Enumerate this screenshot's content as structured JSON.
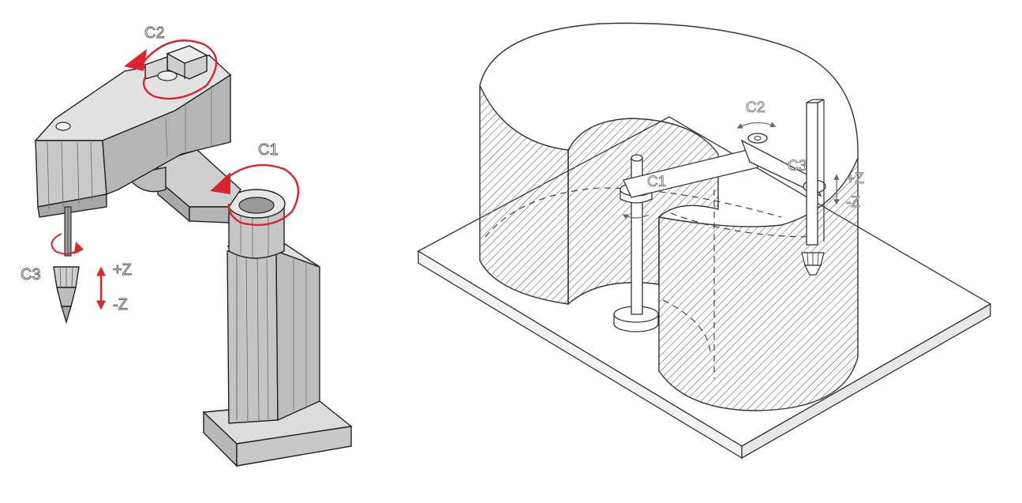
{
  "diagram_left": {
    "labels": {
      "c2": "C2",
      "c1": "C1",
      "c3": "C3",
      "plus_z": "+Z",
      "minus_z": "-Z"
    },
    "colors": {
      "arrow": "#d9252b",
      "metal": "#c0c0c0",
      "metal_dark": "#8c8c8c",
      "metal_light": "#dcdcdc",
      "outline": "#222222"
    }
  },
  "diagram_right": {
    "labels": {
      "c2": "C2",
      "c1": "C1",
      "c3": "C3",
      "plus_z": "+Z",
      "minus_z": "-Z"
    },
    "colors": {
      "hatch": "#555555",
      "line": "#333333",
      "base": "#ffffff"
    }
  }
}
